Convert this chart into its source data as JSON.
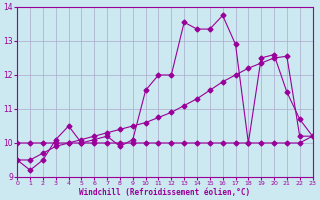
{
  "xlabel": "Windchill (Refroidissement éolien,°C)",
  "bg_color": "#cce8f0",
  "line_color": "#990099",
  "grid_color": "#aaaacc",
  "x_values": [
    0,
    1,
    2,
    3,
    4,
    5,
    6,
    7,
    8,
    9,
    10,
    11,
    12,
    13,
    14,
    15,
    16,
    17,
    18,
    19,
    20,
    21,
    22,
    23
  ],
  "y_main": [
    9.5,
    9.2,
    9.5,
    10.1,
    10.5,
    10.0,
    10.1,
    10.2,
    9.9,
    10.1,
    11.55,
    12.0,
    12.0,
    13.55,
    13.35,
    13.35,
    13.75,
    12.9,
    10.0,
    12.5,
    12.6,
    11.5,
    10.7,
    10.2
  ],
  "y_diag": [
    9.5,
    9.5,
    9.7,
    9.9,
    10.0,
    10.1,
    10.2,
    10.3,
    10.4,
    10.5,
    10.6,
    10.75,
    10.9,
    11.1,
    11.3,
    11.55,
    11.8,
    12.0,
    12.2,
    12.35,
    12.5,
    12.55,
    10.2,
    10.2
  ],
  "y_flat": [
    10.0,
    10.0,
    10.0,
    10.0,
    10.0,
    10.0,
    10.0,
    10.0,
    10.0,
    10.0,
    10.0,
    10.0,
    10.0,
    10.0,
    10.0,
    10.0,
    10.0,
    10.0,
    10.0,
    10.0,
    10.0,
    10.0,
    10.0,
    10.2
  ],
  "xlim": [
    0,
    23
  ],
  "ylim": [
    9.0,
    14.0
  ],
  "yticks": [
    9,
    10,
    11,
    12,
    13,
    14
  ],
  "xticks": [
    0,
    1,
    2,
    3,
    4,
    5,
    6,
    7,
    8,
    9,
    10,
    11,
    12,
    13,
    14,
    15,
    16,
    17,
    18,
    19,
    20,
    21,
    22,
    23
  ]
}
